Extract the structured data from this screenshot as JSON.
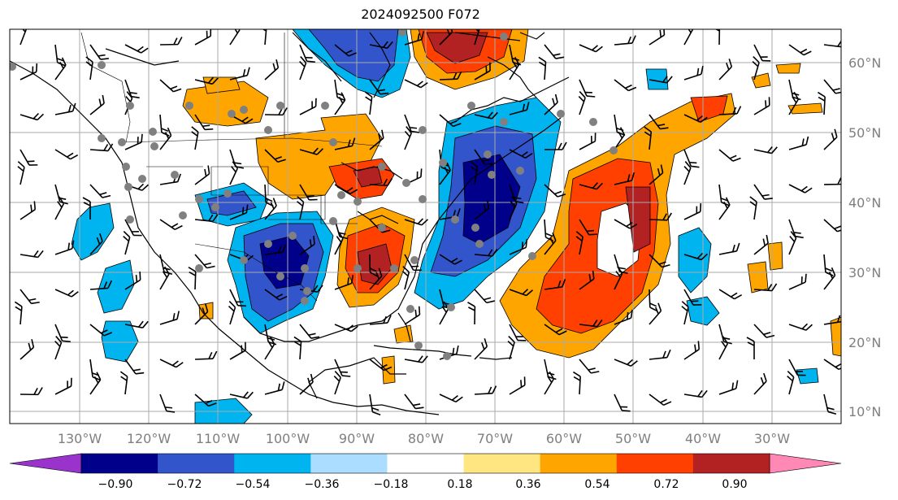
{
  "title": "2024092500 F072",
  "lat_labels": [
    "60°N",
    "50°N",
    "40°N",
    "30°N",
    "20°N",
    "10°N"
  ],
  "lon_labels": [
    "130°W",
    "120°W",
    "110°W",
    "100°W",
    "90°W",
    "80°W",
    "70°W",
    "60°W",
    "50°W",
    "40°W",
    "30°W"
  ],
  "colorbar": {
    "colors": [
      "#9933cc",
      "#00008b",
      "#3355cc",
      "#00b4f0",
      "#aaddff",
      "#ffffff",
      "#ffe680",
      "#ffa500",
      "#ff4000",
      "#b22222",
      "#ff88b4"
    ],
    "tick_labels": [
      "−0.90",
      "−0.72",
      "−0.54",
      "−0.36",
      "−0.18",
      "0.18",
      "0.36",
      "0.54",
      "0.72",
      "0.90"
    ]
  },
  "colors": {
    "grid": "#aaaaaa",
    "coast": "#000000",
    "station_dot": "#808080"
  }
}
